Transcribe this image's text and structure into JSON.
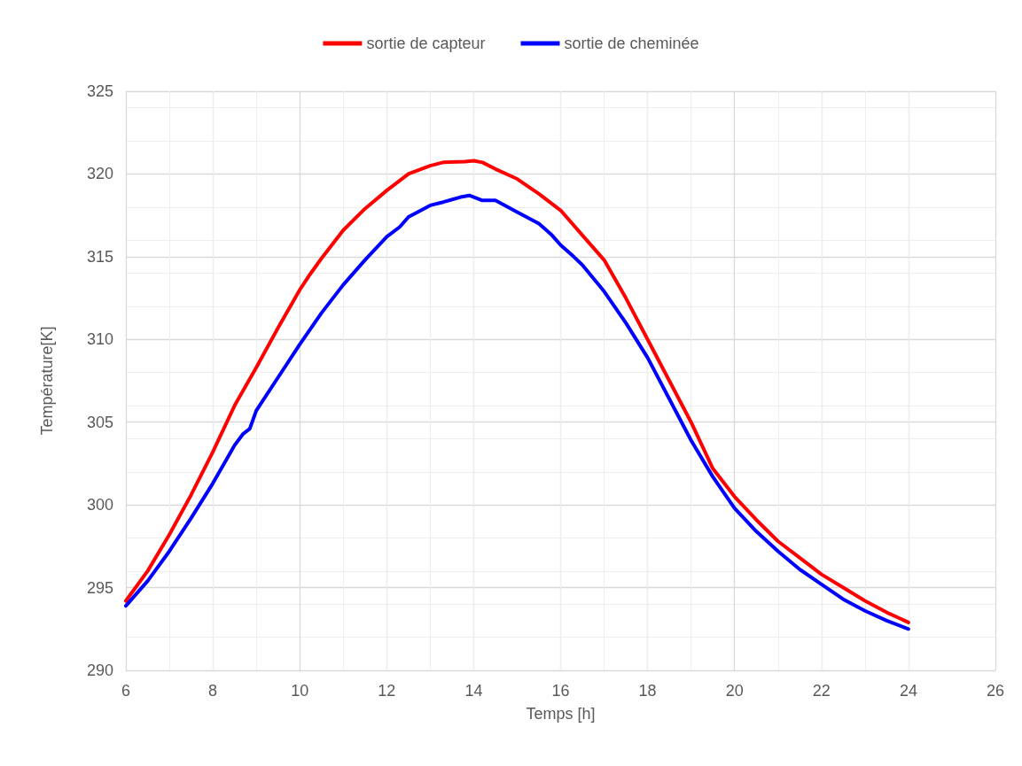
{
  "chart_data": {
    "type": "line",
    "xlabel": "Temps [h]",
    "ylabel": "Température[K]",
    "xlim": [
      6,
      26
    ],
    "xticks": [
      6,
      8,
      10,
      12,
      14,
      16,
      18,
      20,
      22,
      24,
      26
    ],
    "ylim": [
      290,
      325
    ],
    "yticks": [
      290,
      295,
      300,
      305,
      310,
      315,
      320,
      325
    ],
    "grid": true,
    "legend": "top",
    "marker": "none",
    "line_style": "solid",
    "series": [
      {
        "name": "sortie de capteur",
        "color": "#ff0000",
        "x": [
          6,
          6.5,
          7,
          7.5,
          8,
          8.5,
          9,
          9.5,
          10,
          10.2,
          10.5,
          11,
          11.5,
          12,
          12.5,
          13,
          13.3,
          13.8,
          14,
          14.2,
          14.5,
          15,
          15.5,
          15.8,
          16,
          16.5,
          17,
          17.5,
          18,
          18.5,
          19,
          19.5,
          20,
          20.5,
          21,
          21.5,
          22,
          22.5,
          23,
          23.5,
          24
        ],
        "values": [
          294.2,
          296,
          298.2,
          300.6,
          303.2,
          306,
          308.3,
          310.7,
          313,
          313.8,
          314.9,
          316.6,
          317.9,
          319,
          320,
          320.5,
          320.7,
          320.75,
          320.8,
          320.7,
          320.3,
          319.7,
          318.8,
          318.2,
          317.8,
          316.3,
          314.8,
          312.5,
          310,
          307.5,
          305,
          302.2,
          300.5,
          299.1,
          297.8,
          296.8,
          295.8,
          295,
          294.2,
          293.5,
          292.9
        ]
      },
      {
        "name": "sortie de cheminée",
        "color": "#0000ff",
        "x": [
          6,
          6.5,
          7,
          7.5,
          8,
          8.5,
          8.7,
          8.85,
          9,
          9.5,
          10,
          10.5,
          11,
          11.5,
          12,
          12.3,
          12.5,
          13,
          13.3,
          13.7,
          13.9,
          14.2,
          14.5,
          15,
          15.5,
          15.8,
          16,
          16.3,
          16.5,
          17,
          17.5,
          18,
          18.5,
          19,
          19.5,
          20,
          20.5,
          21,
          21.5,
          22,
          22.5,
          23,
          23.5,
          24
        ],
        "values": [
          293.9,
          295.4,
          297.2,
          299.2,
          301.3,
          303.6,
          304.3,
          304.6,
          305.7,
          307.7,
          309.7,
          311.6,
          313.3,
          314.8,
          316.2,
          316.8,
          317.4,
          318.1,
          318.3,
          318.6,
          318.7,
          318.4,
          318.4,
          317.7,
          317,
          316.3,
          315.7,
          315,
          314.5,
          312.9,
          311,
          308.9,
          306.4,
          303.9,
          301.7,
          299.8,
          298.4,
          297.2,
          296.1,
          295.2,
          294.3,
          293.6,
          293,
          292.5
        ]
      }
    ]
  }
}
